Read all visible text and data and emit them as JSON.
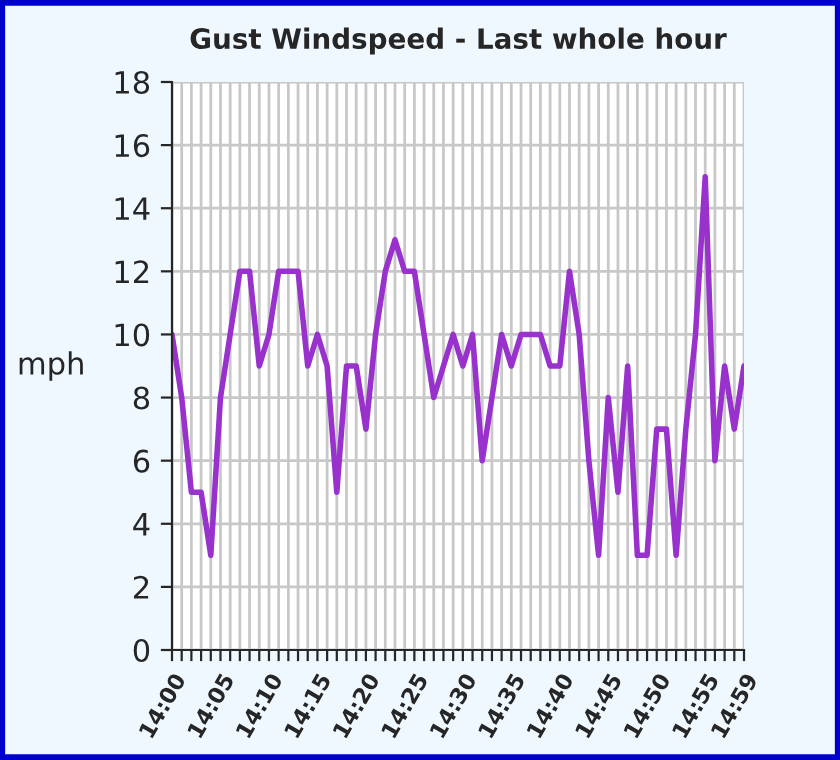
{
  "chart_data": {
    "type": "line",
    "title": "Gust Windspeed - Last whole hour",
    "ylabel": "mph",
    "categories": [
      "14:00",
      null,
      null,
      null,
      null,
      "14:05",
      null,
      null,
      null,
      null,
      "14:10",
      null,
      null,
      null,
      null,
      "14:15",
      null,
      null,
      null,
      null,
      "14:20",
      null,
      null,
      null,
      null,
      "14:25",
      null,
      null,
      null,
      null,
      "14:30",
      null,
      null,
      null,
      null,
      "14:35",
      null,
      null,
      null,
      null,
      "14:40",
      null,
      null,
      null,
      null,
      "14:45",
      null,
      null,
      null,
      null,
      "14:50",
      null,
      null,
      null,
      null,
      "14:55",
      null,
      null,
      null,
      "14:59"
    ],
    "series": [
      {
        "color": "#9932cc",
        "values": [
          10,
          8,
          5,
          5,
          3,
          8,
          10,
          12,
          12,
          9,
          10,
          12,
          12,
          12,
          9,
          10,
          9,
          5,
          9,
          9,
          7,
          10,
          12,
          13,
          12,
          12,
          10,
          8,
          9,
          10,
          9,
          10,
          6,
          8,
          10,
          9,
          10,
          10,
          10,
          9,
          9,
          12,
          10,
          6,
          3,
          8,
          5,
          9,
          3,
          3,
          7,
          7,
          3,
          7,
          10,
          15,
          6,
          9,
          7,
          9
        ]
      }
    ],
    "ylim": [
      0,
      18
    ],
    "yticks": [
      0,
      2,
      4,
      6,
      8,
      10,
      12,
      14,
      16,
      18
    ],
    "grid": true,
    "marker": "none",
    "line_style": "solid"
  }
}
